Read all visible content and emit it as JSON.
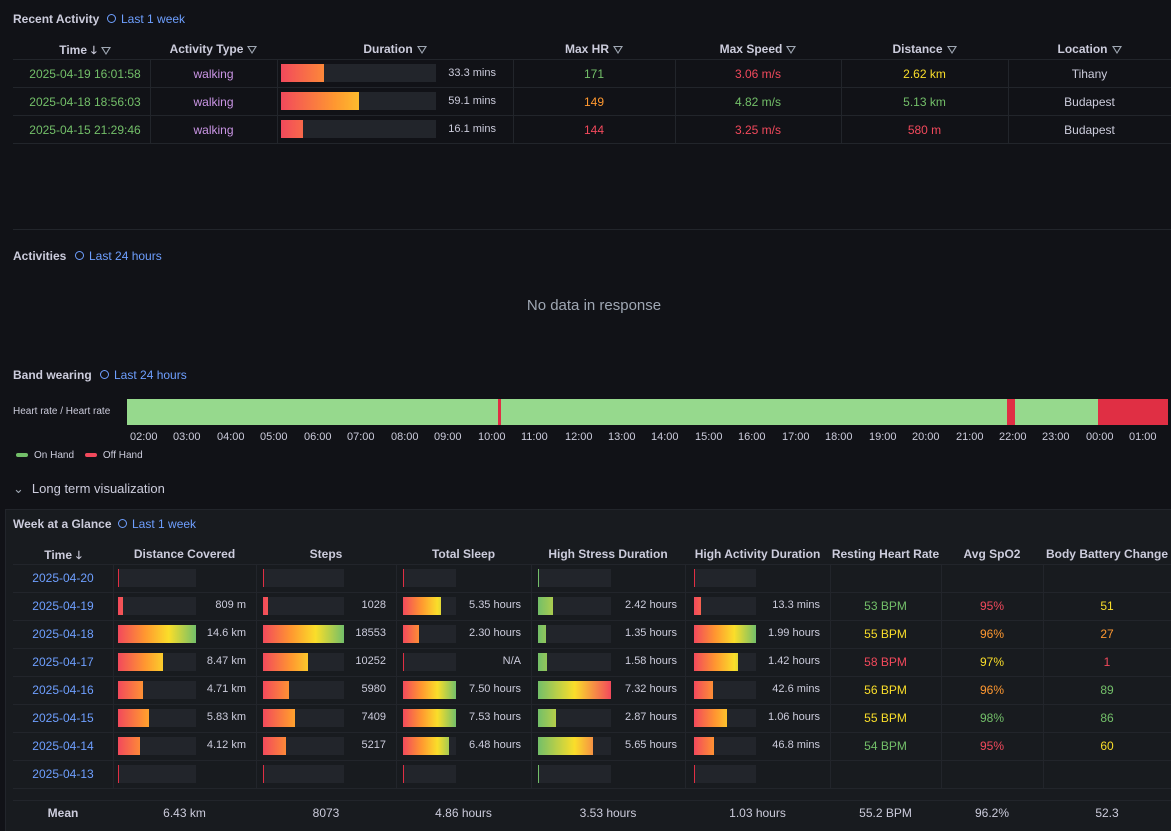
{
  "recent": {
    "title": "Recent Activity",
    "range": "Last 1 week",
    "headers": [
      "Time",
      "Activity Type",
      "Duration",
      "Max HR",
      "Max Speed",
      "Distance",
      "Location"
    ],
    "rows": [
      {
        "time": "2025-04-19 16:01:58",
        "type": "walking",
        "duration": "33.3 mins",
        "duration_frac": 0.28,
        "hr": "171",
        "speed": "3.06 m/s",
        "distance": "2.62 km",
        "location": "Tihany"
      },
      {
        "time": "2025-04-18 18:56:03",
        "type": "walking",
        "duration": "59.1 mins",
        "duration_frac": 0.5,
        "hr": "149",
        "speed": "4.82 m/s",
        "distance": "5.13 km",
        "location": "Budapest"
      },
      {
        "time": "2025-04-15 21:29:46",
        "type": "walking",
        "duration": "16.1 mins",
        "duration_frac": 0.14,
        "hr": "144",
        "speed": "3.25 m/s",
        "distance": "580 m",
        "location": "Budapest"
      }
    ]
  },
  "activities": {
    "title": "Activities",
    "range": "Last 24 hours",
    "empty": "No data in response"
  },
  "band": {
    "title": "Band wearing",
    "range": "Last 24 hours",
    "series_label": "Heart rate / Heart rate",
    "ticks": [
      "02:00",
      "03:00",
      "04:00",
      "05:00",
      "06:00",
      "07:00",
      "08:00",
      "09:00",
      "10:00",
      "11:00",
      "12:00",
      "13:00",
      "14:00",
      "15:00",
      "16:00",
      "17:00",
      "18:00",
      "19:00",
      "20:00",
      "21:00",
      "22:00",
      "23:00",
      "00:00",
      "01:00"
    ],
    "legend": [
      {
        "label": "On Hand",
        "color": "#73bf69"
      },
      {
        "label": "Off Hand",
        "color": "#f2495c"
      }
    ],
    "colors": {
      "on": "#96d98d",
      "off": "#e02f44"
    }
  },
  "section": {
    "chevron": "⌄",
    "title": "Long term visualization"
  },
  "week": {
    "title": "Week at a Glance",
    "range": "Last 1 week",
    "headers": [
      "Time",
      "Distance Covered",
      "Steps",
      "Total Sleep",
      "High Stress Duration",
      "High Activity Duration",
      "Resting Heart Rate",
      "Avg SpO2",
      "Body Battery Change"
    ],
    "rows": [
      {
        "date": "2025-04-20",
        "dist": "",
        "dist_frac": 0,
        "steps": "",
        "steps_frac": 0,
        "sleep": "",
        "sleep_frac": 0,
        "stress": "",
        "stress_frac": 0,
        "act": "",
        "act_frac": 0,
        "rhr": "",
        "spo2": "",
        "bb": ""
      },
      {
        "date": "2025-04-19",
        "dist": "809 m",
        "dist_frac": 0.06,
        "steps": "1028",
        "steps_frac": 0.06,
        "sleep": "5.35 hours",
        "sleep_frac": 0.71,
        "stress": "2.42 hours",
        "stress_frac": 0.2,
        "act": "13.3 mins",
        "act_frac": 0.11,
        "rhr": "53 BPM",
        "spo2": "95%",
        "bb": "51"
      },
      {
        "date": "2025-04-18",
        "dist": "14.6 km",
        "dist_frac": 1.0,
        "steps": "18553",
        "steps_frac": 1.0,
        "sleep": "2.30 hours",
        "sleep_frac": 0.31,
        "stress": "1.35 hours",
        "stress_frac": 0.11,
        "act": "1.99 hours",
        "act_frac": 1.0,
        "rhr": "55 BPM",
        "spo2": "96%",
        "bb": "27"
      },
      {
        "date": "2025-04-17",
        "dist": "8.47 km",
        "dist_frac": 0.58,
        "steps": "10252",
        "steps_frac": 0.55,
        "sleep": "N/A",
        "sleep_frac": 0,
        "stress": "1.58 hours",
        "stress_frac": 0.13,
        "act": "1.42 hours",
        "act_frac": 0.71,
        "rhr": "58 BPM",
        "spo2": "97%",
        "bb": "1"
      },
      {
        "date": "2025-04-16",
        "dist": "4.71 km",
        "dist_frac": 0.32,
        "steps": "5980",
        "steps_frac": 0.32,
        "sleep": "7.50 hours",
        "sleep_frac": 1.0,
        "stress": "7.32 hours",
        "stress_frac": 1.0,
        "act": "42.6 mins",
        "act_frac": 0.3,
        "rhr": "56 BPM",
        "spo2": "96%",
        "bb": "89"
      },
      {
        "date": "2025-04-15",
        "dist": "5.83 km",
        "dist_frac": 0.4,
        "steps": "7409",
        "steps_frac": 0.4,
        "sleep": "7.53 hours",
        "sleep_frac": 1.0,
        "stress": "2.87 hours",
        "stress_frac": 0.25,
        "act": "1.06 hours",
        "act_frac": 0.53,
        "rhr": "55 BPM",
        "spo2": "98%",
        "bb": "86"
      },
      {
        "date": "2025-04-14",
        "dist": "4.12 km",
        "dist_frac": 0.28,
        "steps": "5217",
        "steps_frac": 0.28,
        "sleep": "6.48 hours",
        "sleep_frac": 0.86,
        "stress": "5.65 hours",
        "stress_frac": 0.75,
        "act": "46.8 mins",
        "act_frac": 0.33,
        "rhr": "54 BPM",
        "spo2": "95%",
        "bb": "60"
      },
      {
        "date": "2025-04-13",
        "dist": "",
        "dist_frac": 0,
        "steps": "",
        "steps_frac": 0,
        "sleep": "",
        "sleep_frac": 0,
        "stress": "",
        "stress_frac": 0,
        "act": "",
        "act_frac": 0,
        "rhr": "",
        "spo2": "",
        "bb": ""
      }
    ],
    "footer": [
      "Mean",
      "6.43 km",
      "8073",
      "4.86 hours",
      "3.53 hours",
      "1.03 hours",
      "55.2 BPM",
      "96.2%",
      "52.3"
    ]
  }
}
